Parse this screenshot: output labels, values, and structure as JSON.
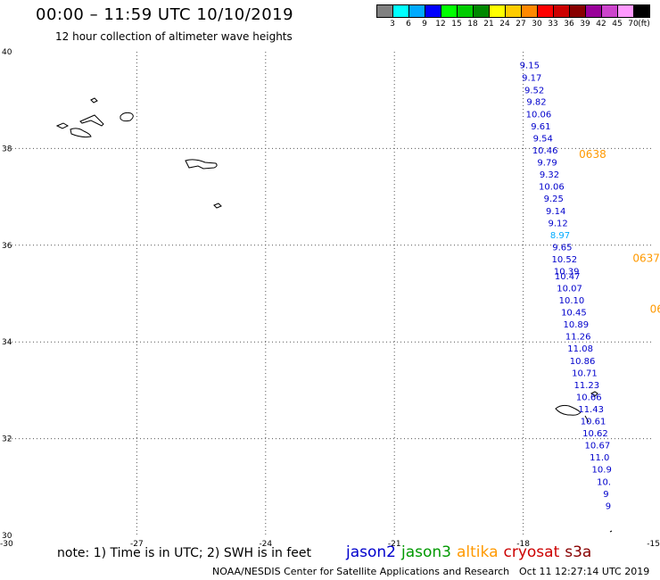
{
  "header": {
    "title": "00:00 – 11:59 UTC 10/10/2019",
    "subtitle": "12 hour collection of altimeter wave heights"
  },
  "color_legend": {
    "unit": "(ft)",
    "items": [
      {
        "label": "3",
        "color": "#808080"
      },
      {
        "label": "6",
        "color": "#00ffff"
      },
      {
        "label": "9",
        "color": "#00aaff"
      },
      {
        "label": "12",
        "color": "#0000ff"
      },
      {
        "label": "15",
        "color": "#00ff00"
      },
      {
        "label": "18",
        "color": "#00cc00"
      },
      {
        "label": "21",
        "color": "#008800"
      },
      {
        "label": "24",
        "color": "#ffff00"
      },
      {
        "label": "27",
        "color": "#ffcc00"
      },
      {
        "label": "30",
        "color": "#ff8800"
      },
      {
        "label": "33",
        "color": "#ff0000"
      },
      {
        "label": "36",
        "color": "#cc0000"
      },
      {
        "label": "39",
        "color": "#880000"
      },
      {
        "label": "42",
        "color": "#990099"
      },
      {
        "label": "45",
        "color": "#cc44cc"
      },
      {
        "label": "70",
        "color": "#ff99ff"
      },
      {
        "label": "",
        "color": "#000000"
      }
    ]
  },
  "footer": {
    "note": "note: 1) Time is in UTC; 2) SWH is in feet",
    "satellites": [
      {
        "name": "jason2",
        "color": "#0000cc"
      },
      {
        "name": "jason3",
        "color": "#009900"
      },
      {
        "name": "altika",
        "color": "#ff9900"
      },
      {
        "name": "cryosat",
        "color": "#cc0000"
      },
      {
        "name": "s3a",
        "color": "#880000"
      }
    ],
    "credit": "NOAA/NESDIS Center for Satellite Applications and Research",
    "generated": "Oct 11 12:27:14 UTC 2019"
  },
  "chart_data": {
    "type": "scatter",
    "title": "00:00 – 11:59 UTC 10/10/2019",
    "subtitle": "12 hour collection of altimeter wave heights",
    "xlim": [
      -30,
      -15
    ],
    "ylim": [
      30,
      40
    ],
    "x_ticks": [
      "-30",
      "-27",
      "-24",
      "-21",
      "-18",
      "-15"
    ],
    "y_ticks": [
      "30",
      "32",
      "34",
      "36",
      "38",
      "40"
    ],
    "grid": true,
    "track_labels": [
      {
        "lon": -16.7,
        "lat": 37.9,
        "text": "0638",
        "color": "#ff9900"
      },
      {
        "lon": -15.45,
        "lat": 35.75,
        "text": "0637",
        "color": "#ff9900"
      },
      {
        "lon": -15.05,
        "lat": 34.7,
        "text": "06",
        "color": "#ff9900"
      }
    ],
    "series": [
      {
        "name": "jason2",
        "color": "#0000cc",
        "points": [
          {
            "lon": -17.85,
            "lat": 39.73,
            "v": "9.15"
          },
          {
            "lon": -17.8,
            "lat": 39.47,
            "v": "9.17"
          },
          {
            "lon": -17.74,
            "lat": 39.22,
            "v": "9.52"
          },
          {
            "lon": -17.69,
            "lat": 38.98,
            "v": "9.82"
          },
          {
            "lon": -17.64,
            "lat": 38.72,
            "v": "10.06"
          },
          {
            "lon": -17.59,
            "lat": 38.47,
            "v": "9.61"
          },
          {
            "lon": -17.54,
            "lat": 38.22,
            "v": "9.54"
          },
          {
            "lon": -17.49,
            "lat": 37.97,
            "v": "10.46"
          },
          {
            "lon": -17.44,
            "lat": 37.72,
            "v": "9.79"
          },
          {
            "lon": -17.39,
            "lat": 37.47,
            "v": "9.32"
          },
          {
            "lon": -17.34,
            "lat": 37.22,
            "v": "10.06"
          },
          {
            "lon": -17.29,
            "lat": 36.97,
            "v": "9.25"
          },
          {
            "lon": -17.24,
            "lat": 36.72,
            "v": "9.14"
          },
          {
            "lon": -17.19,
            "lat": 36.47,
            "v": "9.12"
          },
          {
            "lon": -17.14,
            "lat": 36.22,
            "v": "8.97",
            "color": "#00aaff"
          },
          {
            "lon": -17.09,
            "lat": 35.97,
            "v": "9.65"
          },
          {
            "lon": -17.04,
            "lat": 35.72,
            "v": "10.52"
          },
          {
            "lon": -16.99,
            "lat": 35.47,
            "v": "10.39"
          },
          {
            "lon": -16.97,
            "lat": 35.37,
            "v": "10.47"
          },
          {
            "lon": -16.92,
            "lat": 35.12,
            "v": "10.07"
          },
          {
            "lon": -16.87,
            "lat": 34.87,
            "v": "10.10"
          },
          {
            "lon": -16.82,
            "lat": 34.62,
            "v": "10.45"
          },
          {
            "lon": -16.77,
            "lat": 34.37,
            "v": "10.89"
          },
          {
            "lon": -16.72,
            "lat": 34.12,
            "v": "11.26"
          },
          {
            "lon": -16.67,
            "lat": 33.87,
            "v": "11.08"
          },
          {
            "lon": -16.62,
            "lat": 33.62,
            "v": "10.86"
          },
          {
            "lon": -16.57,
            "lat": 33.37,
            "v": "10.71"
          },
          {
            "lon": -16.52,
            "lat": 33.12,
            "v": "11.23"
          },
          {
            "lon": -16.47,
            "lat": 32.87,
            "v": "10.66"
          },
          {
            "lon": -16.42,
            "lat": 32.62,
            "v": "11.43"
          },
          {
            "lon": -16.37,
            "lat": 32.37,
            "v": "10.61"
          },
          {
            "lon": -16.32,
            "lat": 32.12,
            "v": "10.62"
          },
          {
            "lon": -16.27,
            "lat": 31.87,
            "v": "10.67"
          },
          {
            "lon": -16.22,
            "lat": 31.62,
            "v": "11.0"
          },
          {
            "lon": -16.17,
            "lat": 31.37,
            "v": "10.9"
          },
          {
            "lon": -16.12,
            "lat": 31.12,
            "v": "10."
          },
          {
            "lon": -16.07,
            "lat": 30.87,
            "v": "9"
          },
          {
            "lon": -16.02,
            "lat": 30.62,
            "v": "9"
          }
        ]
      }
    ]
  }
}
